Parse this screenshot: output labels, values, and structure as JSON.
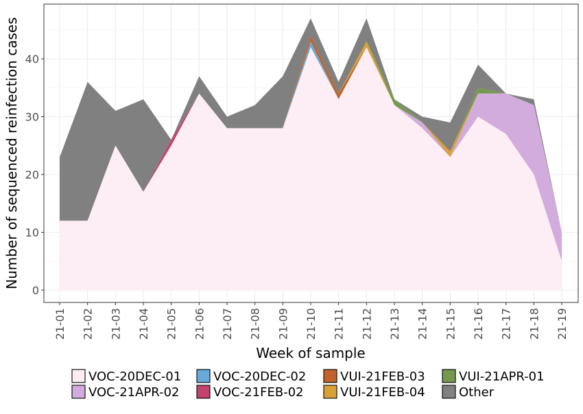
{
  "chart_data": {
    "type": "area",
    "stacked": true,
    "xlabel": "Week of sample",
    "ylabel": "Number of sequenced reinfection cases",
    "categories": [
      "21-01",
      "21-02",
      "21-03",
      "21-04",
      "21-05",
      "21-06",
      "21-07",
      "21-08",
      "21-09",
      "21-10",
      "21-11",
      "21-12",
      "21-13",
      "21-14",
      "21-15",
      "21-16",
      "21-17",
      "21-18",
      "21-19"
    ],
    "ylim": [
      0,
      49
    ],
    "yticks": [
      0,
      10,
      20,
      30,
      40
    ],
    "grid": true,
    "legend_position": "bottom",
    "series": [
      {
        "name": "VOC-20DEC-01",
        "color": "#fdeef5",
        "values": [
          12,
          12,
          25,
          17,
          25,
          34,
          28,
          28,
          28,
          42,
          33,
          42,
          32,
          28,
          23,
          30,
          27,
          20,
          5
        ]
      },
      {
        "name": "VOC-21APR-02",
        "color": "#d2acdc",
        "values": [
          0,
          0,
          0,
          0,
          0,
          0,
          0,
          0,
          0,
          0,
          0,
          0,
          0,
          1,
          0,
          4,
          7,
          12,
          5
        ]
      },
      {
        "name": "VOC-20DEC-02",
        "color": "#66aadb",
        "values": [
          0,
          0,
          0,
          0,
          0,
          0,
          0,
          0,
          0,
          1,
          0,
          0,
          0,
          0,
          0,
          0,
          0,
          0,
          0
        ]
      },
      {
        "name": "VOC-21FEB-02",
        "color": "#c2436e",
        "values": [
          0,
          0,
          0,
          0,
          1,
          0,
          0,
          0,
          0,
          0,
          0,
          0,
          0,
          0,
          0,
          0,
          0,
          0,
          0
        ]
      },
      {
        "name": "VUI-21FEB-03",
        "color": "#c0642b",
        "values": [
          0,
          0,
          0,
          0,
          0,
          0,
          0,
          0,
          0,
          1,
          1,
          0,
          0,
          0,
          0,
          0,
          0,
          0,
          0
        ]
      },
      {
        "name": "VUI-21FEB-04",
        "color": "#d9a035",
        "values": [
          0,
          0,
          0,
          0,
          0,
          0,
          0,
          0,
          0,
          0,
          0,
          1,
          0,
          0,
          1,
          0,
          0,
          0,
          0
        ]
      },
      {
        "name": "VUI-21APR-01",
        "color": "#76994e",
        "values": [
          0,
          0,
          0,
          0,
          0,
          0,
          0,
          0,
          0,
          0,
          0,
          0,
          1,
          0,
          0,
          1,
          0,
          0,
          0
        ]
      },
      {
        "name": "Other",
        "color": "#808080",
        "values": [
          11,
          24,
          6,
          16,
          0,
          3,
          2,
          4,
          9,
          3,
          2,
          4,
          0,
          1,
          5,
          4,
          0,
          1,
          0
        ]
      }
    ],
    "legend": [
      [
        "VOC-20DEC-01",
        "VOC-20DEC-02",
        "VUI-21FEB-03",
        "VUI-21APR-01"
      ],
      [
        "VOC-21APR-02",
        "VOC-21FEB-02",
        "VUI-21FEB-04",
        "Other"
      ]
    ]
  }
}
